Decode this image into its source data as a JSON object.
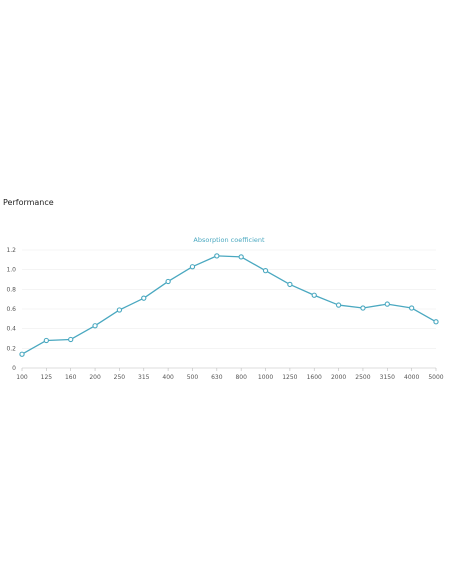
{
  "section": {
    "heading": "Performance"
  },
  "chart_data": {
    "type": "line",
    "title": "",
    "xlabel": "",
    "ylabel": "",
    "categories": [
      "100",
      "125",
      "160",
      "200",
      "250",
      "315",
      "400",
      "500",
      "630",
      "800",
      "1000",
      "1250",
      "1600",
      "2000",
      "2500",
      "3150",
      "4000",
      "5000"
    ],
    "series": [
      {
        "name": "Absorption coefficient",
        "values": [
          0.14,
          0.28,
          0.29,
          0.43,
          0.59,
          0.71,
          0.88,
          1.03,
          1.14,
          1.13,
          0.99,
          0.85,
          0.74,
          0.64,
          0.61,
          0.65,
          0.61,
          0.47
        ],
        "color": "#4aa8c0"
      }
    ],
    "ylim": [
      0,
      1.2
    ],
    "yticks": [
      "0",
      "0.2",
      "0.4",
      "0.6",
      "0.8",
      "1.0",
      "1.2"
    ],
    "grid": true,
    "legend": "top-center"
  }
}
